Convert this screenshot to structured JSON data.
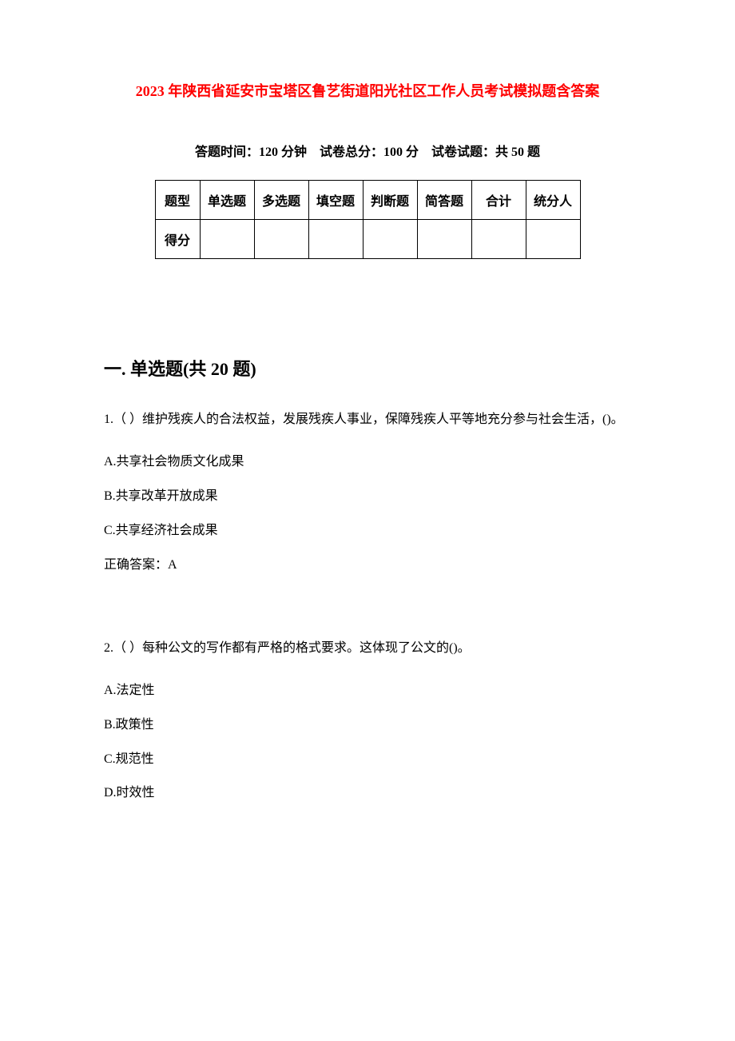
{
  "title": "2023 年陕西省延安市宝塔区鲁艺街道阳光社区工作人员考试模拟题含答案",
  "exam_info": {
    "time_label": "答题时间：",
    "time_value": "120 分钟",
    "total_label": "试卷总分：",
    "total_value": "100 分",
    "count_label": "试卷试题：",
    "count_value": "共 50 题"
  },
  "score_table": {
    "row1": [
      "题型",
      "单选题",
      "多选题",
      "填空题",
      "判断题",
      "简答题",
      "合计",
      "统分人"
    ],
    "row2_label": "得分",
    "styling": {
      "border_color": "#000000",
      "border_width": 1,
      "cell_padding": "12px 8px",
      "font_size": 16,
      "font_weight": "bold"
    }
  },
  "section": {
    "heading": "一. 单选题(共 20 题)"
  },
  "questions": [
    {
      "number": "1.",
      "text": "（ ）维护残疾人的合法权益，发展残疾人事业，保障残疾人平等地充分参与社会生活，()。",
      "options": [
        "A.共享社会物质文化成果",
        "B.共享改革开放成果",
        "C.共享经济社会成果"
      ],
      "answer_label": "正确答案：",
      "answer_value": "A"
    },
    {
      "number": "2.",
      "text": "（ ）每种公文的写作都有严格的格式要求。这体现了公文的()。",
      "options": [
        "A.法定性",
        "B.政策性",
        "C.规范性",
        "D.时效性"
      ],
      "answer_label": "",
      "answer_value": ""
    }
  ],
  "colors": {
    "title_color": "#ff0000",
    "text_color": "#000000",
    "background": "#ffffff"
  },
  "typography": {
    "title_fontsize": 18,
    "info_fontsize": 16,
    "heading_fontsize": 22,
    "body_fontsize": 16,
    "font_family": "SimSun"
  }
}
